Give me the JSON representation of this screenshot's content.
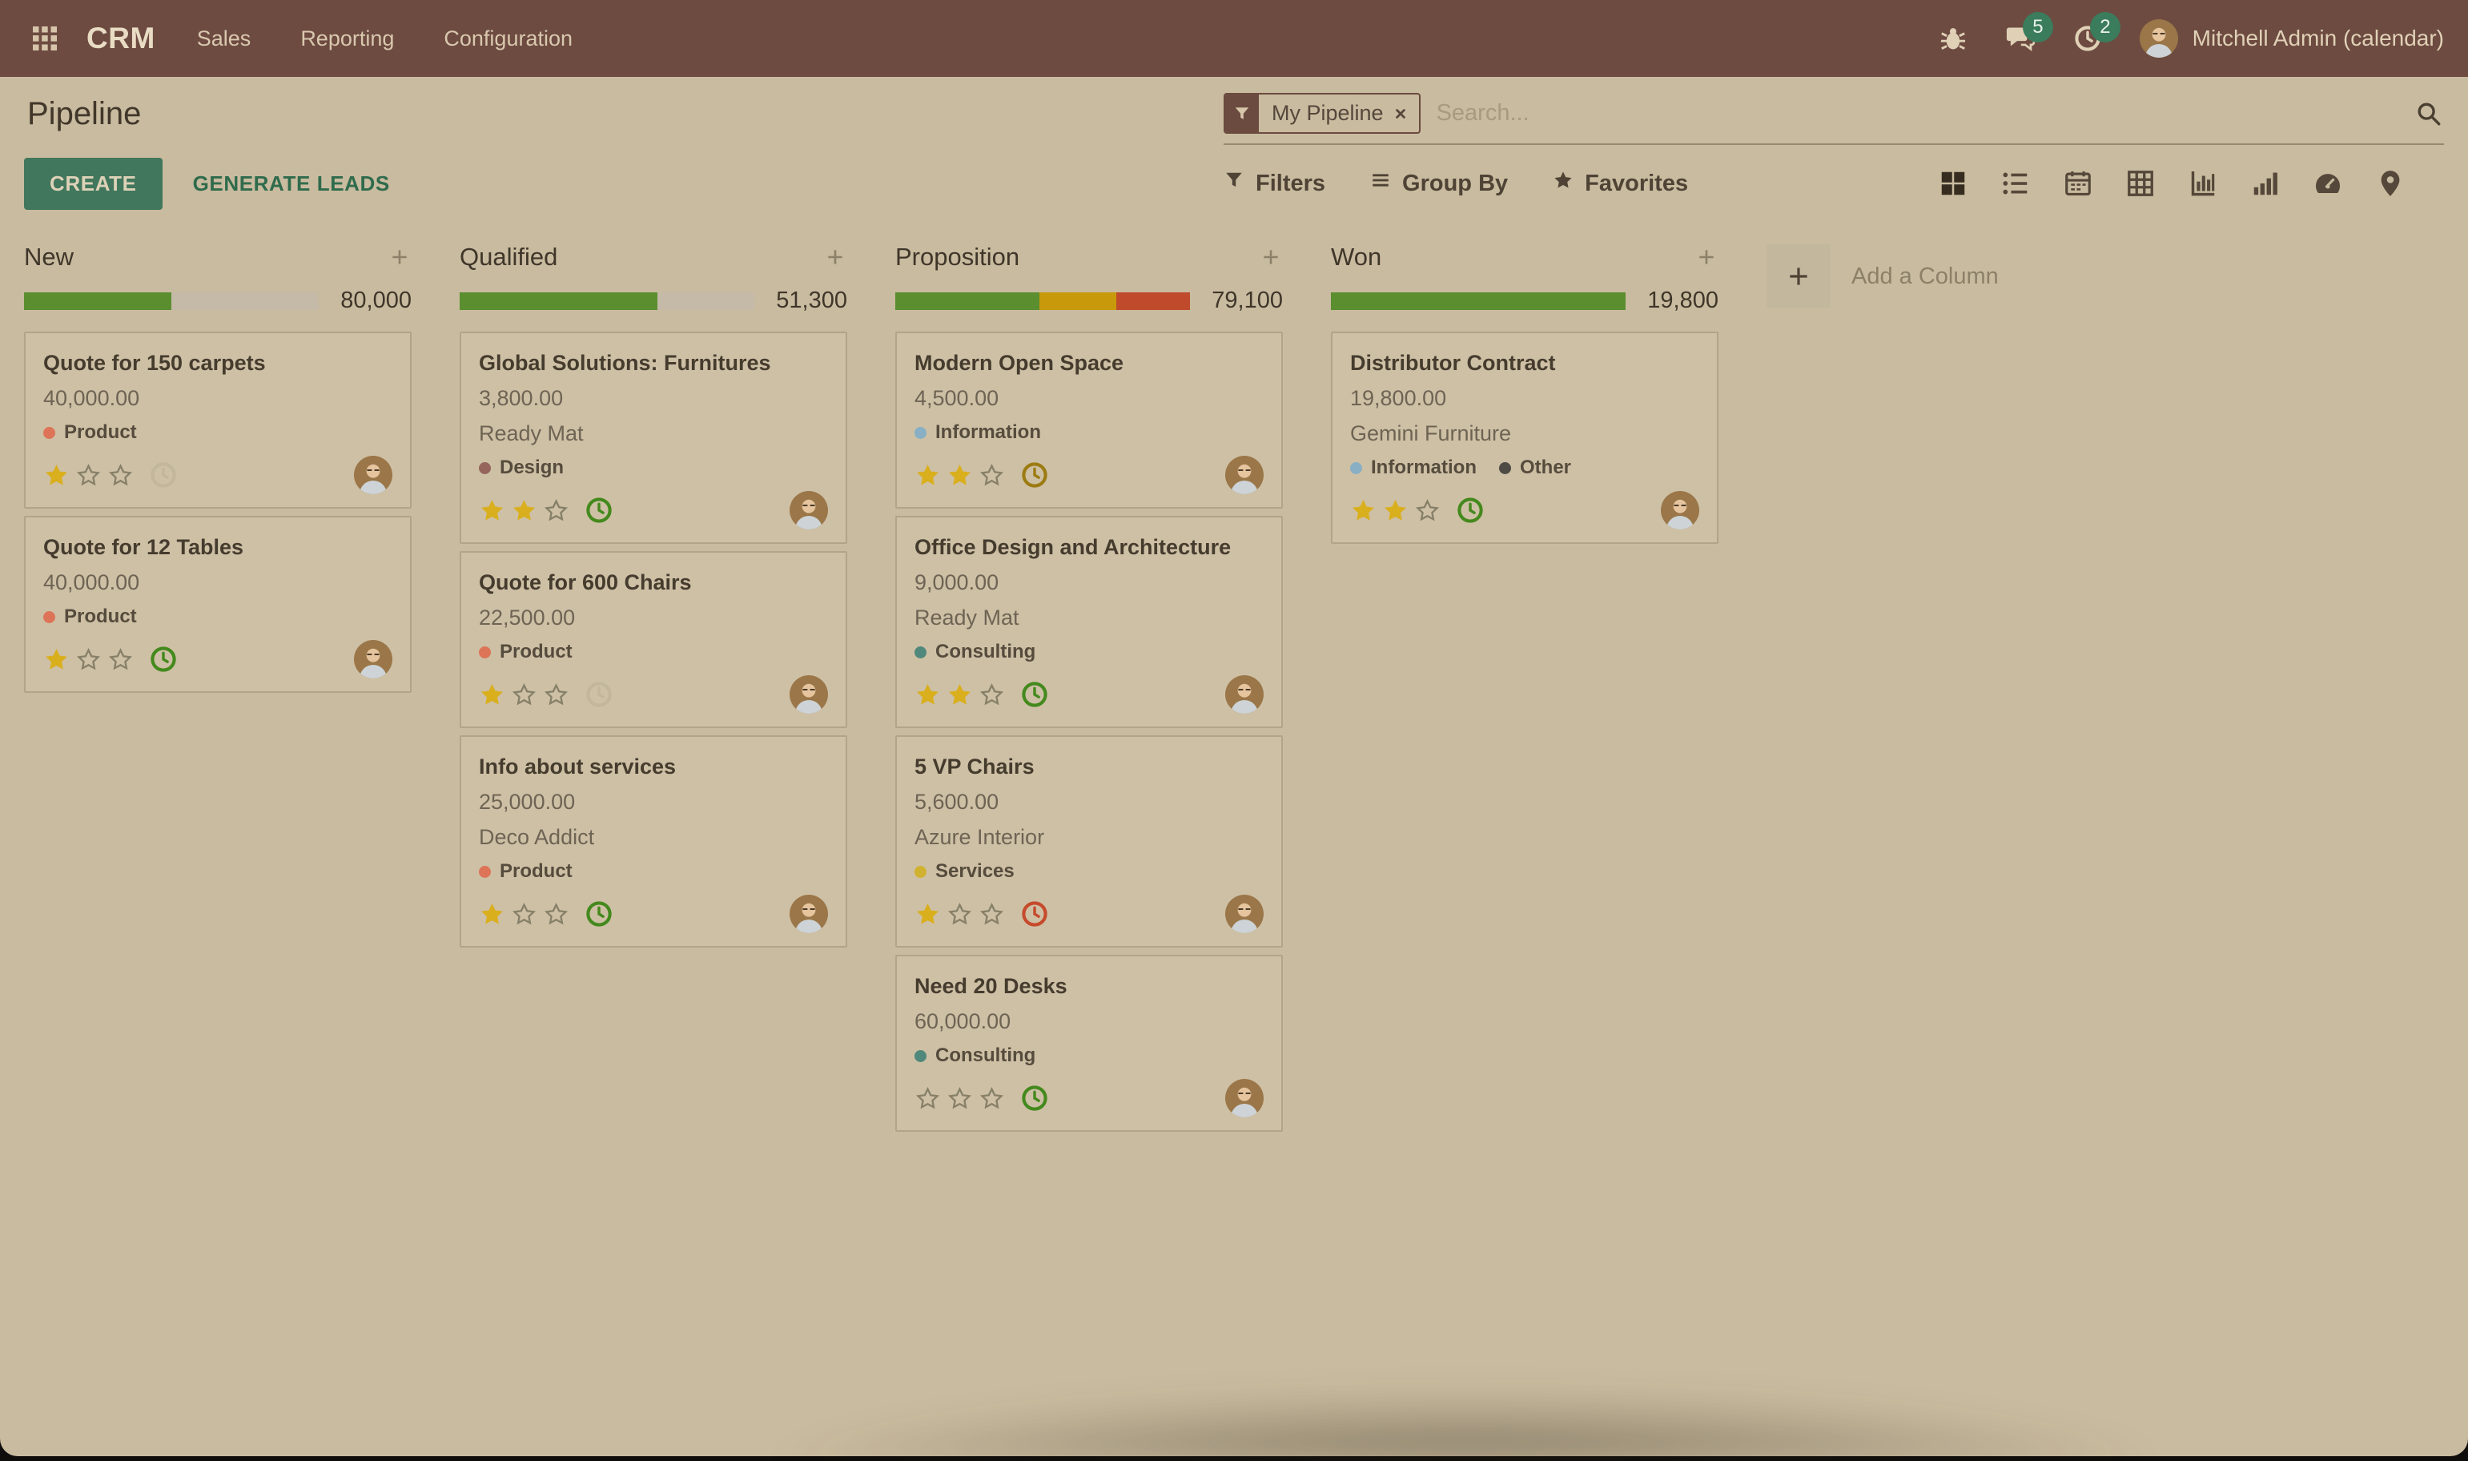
{
  "topbar": {
    "app_name": "CRM",
    "nav": [
      {
        "label": "Sales"
      },
      {
        "label": "Reporting"
      },
      {
        "label": "Configuration"
      }
    ],
    "systray": {
      "messages_count": "5",
      "activities_count": "2",
      "user_name": "Mitchell Admin (calendar)"
    }
  },
  "control_panel": {
    "title": "Pipeline",
    "buttons": {
      "create": "CREATE",
      "generate_leads": "GENERATE LEADS"
    },
    "search": {
      "facet_label": "My Pipeline",
      "placeholder": "Search..."
    },
    "tools": [
      {
        "icon": "funnel",
        "label": "Filters"
      },
      {
        "icon": "bars",
        "label": "Group By"
      },
      {
        "icon": "star",
        "label": "Favorites"
      }
    ],
    "view_switcher": [
      {
        "name": "kanban",
        "active": true
      },
      {
        "name": "list",
        "active": false
      },
      {
        "name": "calendar",
        "active": false
      },
      {
        "name": "pivot",
        "active": false
      },
      {
        "name": "graph",
        "active": false
      },
      {
        "name": "cohort",
        "active": false
      },
      {
        "name": "dashboard",
        "active": false
      },
      {
        "name": "map",
        "active": false
      },
      {
        "name": "activity",
        "active": false
      }
    ]
  },
  "board": {
    "add_column_label": "Add a Column",
    "columns": [
      {
        "name": "New",
        "total": "80,000",
        "progress": [
          {
            "color": "green",
            "pct": 50
          }
        ],
        "cards": [
          {
            "title": "Quote for 150 carpets",
            "amount": "40,000.00",
            "partner": null,
            "tags": [
              {
                "label": "Product",
                "color": "product"
              }
            ],
            "stars": 1,
            "stars_total": 3,
            "activity": "muted"
          },
          {
            "title": "Quote for 12 Tables",
            "amount": "40,000.00",
            "partner": null,
            "tags": [
              {
                "label": "Product",
                "color": "product"
              }
            ],
            "stars": 1,
            "stars_total": 3,
            "activity": "green"
          }
        ]
      },
      {
        "name": "Qualified",
        "total": "51,300",
        "progress": [
          {
            "color": "green",
            "pct": 67
          }
        ],
        "cards": [
          {
            "title": "Global Solutions: Furnitures",
            "amount": "3,800.00",
            "partner": "Ready Mat",
            "tags": [
              {
                "label": "Design",
                "color": "design"
              }
            ],
            "stars": 2,
            "stars_total": 3,
            "activity": "green"
          },
          {
            "title": "Quote for 600 Chairs",
            "amount": "22,500.00",
            "partner": null,
            "tags": [
              {
                "label": "Product",
                "color": "product"
              }
            ],
            "stars": 1,
            "stars_total": 3,
            "activity": "muted"
          },
          {
            "title": "Info about services",
            "amount": "25,000.00",
            "partner": "Deco Addict",
            "tags": [
              {
                "label": "Product",
                "color": "product"
              }
            ],
            "stars": 1,
            "stars_total": 3,
            "activity": "green"
          }
        ]
      },
      {
        "name": "Proposition",
        "total": "79,100",
        "progress": [
          {
            "color": "green",
            "pct": 49
          },
          {
            "color": "yellow",
            "pct": 26
          },
          {
            "color": "red",
            "pct": 25
          }
        ],
        "cards": [
          {
            "title": "Modern Open Space",
            "amount": "4,500.00",
            "partner": null,
            "tags": [
              {
                "label": "Information",
                "color": "information"
              }
            ],
            "stars": 2,
            "stars_total": 3,
            "activity": "olive"
          },
          {
            "title": "Office Design and Architecture",
            "amount": "9,000.00",
            "partner": "Ready Mat",
            "tags": [
              {
                "label": "Consulting",
                "color": "consulting"
              }
            ],
            "stars": 2,
            "stars_total": 3,
            "activity": "green"
          },
          {
            "title": "5 VP Chairs",
            "amount": "5,600.00",
            "partner": "Azure Interior",
            "tags": [
              {
                "label": "Services",
                "color": "services"
              }
            ],
            "stars": 1,
            "stars_total": 3,
            "activity": "red"
          },
          {
            "title": "Need 20 Desks",
            "amount": "60,000.00",
            "partner": null,
            "tags": [
              {
                "label": "Consulting",
                "color": "consulting"
              }
            ],
            "stars": 0,
            "stars_total": 3,
            "activity": "green"
          }
        ]
      },
      {
        "name": "Won",
        "total": "19,800",
        "progress": [
          {
            "color": "green",
            "pct": 100
          }
        ],
        "cards": [
          {
            "title": "Distributor Contract",
            "amount": "19,800.00",
            "partner": "Gemini Furniture",
            "tags": [
              {
                "label": "Information",
                "color": "information"
              },
              {
                "label": "Other",
                "color": "other"
              }
            ],
            "stars": 2,
            "stars_total": 3,
            "activity": "green"
          }
        ]
      }
    ]
  },
  "colors": {
    "accent": "#41775c",
    "topbar": "#6d4b41",
    "background": "#c9bb9f",
    "badge": "#3a7c5c",
    "star": "#d9af1e",
    "progress": {
      "green": "#5a8e2f",
      "yellow": "#c8990b",
      "red": "#bf4b2c"
    },
    "tags": {
      "product": "#dd7457",
      "design": "#95655c",
      "information": "#88afc4",
      "consulting": "#50897b",
      "services": "#d1b230",
      "other": "#4e4a44"
    },
    "activity": {
      "green": "#44891d",
      "muted": "#c2b69c",
      "olive": "#9c7b12",
      "red": "#c64a2c"
    }
  }
}
